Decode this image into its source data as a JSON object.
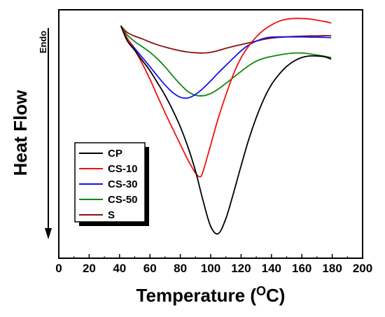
{
  "chart_data": {
    "type": "line",
    "xlabel": "Temperature (",
    "xlabel_sup": "O",
    "xlabel_end": "C)",
    "ylabel": "Heat Flow",
    "annotation": "Endo",
    "xlim": [
      0,
      200
    ],
    "ylim": [
      0,
      1
    ],
    "xticks": [
      "0",
      "20",
      "40",
      "60",
      "80",
      "100",
      "120",
      "140",
      "160",
      "180",
      "200"
    ],
    "y_ticks_shown": false,
    "grid": false,
    "legend_position": "bottom-left",
    "series": [
      {
        "name": "CP",
        "color": "#000000",
        "x": [
          41,
          45,
          50,
          55,
          60,
          65,
          70,
          75,
          80,
          85,
          90,
          95,
          100,
          105,
          110,
          115,
          120,
          125,
          130,
          135,
          140,
          145,
          150,
          155,
          160,
          165,
          170,
          175,
          179
        ],
        "y": [
          0.934,
          0.876,
          0.837,
          0.796,
          0.755,
          0.706,
          0.655,
          0.596,
          0.529,
          0.448,
          0.351,
          0.231,
          0.128,
          0.099,
          0.16,
          0.262,
          0.372,
          0.477,
          0.566,
          0.641,
          0.699,
          0.74,
          0.772,
          0.794,
          0.808,
          0.814,
          0.814,
          0.811,
          0.802
        ]
      },
      {
        "name": "CS-10",
        "color": "#ee1111",
        "x": [
          41,
          45,
          50,
          55,
          60,
          65,
          70,
          75,
          80,
          85,
          90,
          93,
          95,
          100,
          105,
          110,
          115,
          120,
          125,
          130,
          135,
          140,
          145,
          150,
          155,
          160,
          165,
          170,
          175,
          179
        ],
        "y": [
          0.934,
          0.886,
          0.838,
          0.783,
          0.721,
          0.652,
          0.585,
          0.521,
          0.458,
          0.396,
          0.343,
          0.328,
          0.35,
          0.456,
          0.564,
          0.657,
          0.741,
          0.807,
          0.854,
          0.891,
          0.919,
          0.939,
          0.954,
          0.962,
          0.965,
          0.965,
          0.963,
          0.958,
          0.953,
          0.947
        ]
      },
      {
        "name": "CS-30",
        "color": "#1111ee",
        "x": [
          41,
          45,
          50,
          55,
          60,
          65,
          70,
          75,
          80,
          85,
          90,
          95,
          100,
          105,
          110,
          115,
          120,
          125,
          130,
          135,
          140,
          145,
          150,
          155,
          160,
          165,
          170,
          175,
          179
        ],
        "y": [
          0.934,
          0.886,
          0.845,
          0.808,
          0.771,
          0.733,
          0.697,
          0.667,
          0.648,
          0.645,
          0.659,
          0.684,
          0.714,
          0.746,
          0.776,
          0.806,
          0.835,
          0.858,
          0.874,
          0.885,
          0.89,
          0.891,
          0.891,
          0.891,
          0.891,
          0.89,
          0.89,
          0.889,
          0.888
        ]
      },
      {
        "name": "CS-50",
        "color": "#118811",
        "x": [
          41,
          45,
          50,
          55,
          60,
          65,
          70,
          75,
          80,
          85,
          90,
          95,
          100,
          105,
          110,
          115,
          120,
          125,
          130,
          135,
          140,
          145,
          150,
          155,
          160,
          165,
          170,
          175,
          179
        ],
        "y": [
          0.934,
          0.899,
          0.872,
          0.851,
          0.829,
          0.802,
          0.77,
          0.734,
          0.7,
          0.671,
          0.656,
          0.654,
          0.663,
          0.681,
          0.704,
          0.728,
          0.752,
          0.775,
          0.793,
          0.805,
          0.812,
          0.818,
          0.823,
          0.826,
          0.826,
          0.823,
          0.818,
          0.813,
          0.808
        ]
      },
      {
        "name": "S",
        "color": "#8b1111",
        "x": [
          41,
          45,
          50,
          55,
          60,
          65,
          70,
          75,
          80,
          85,
          90,
          95,
          100,
          105,
          110,
          115,
          120,
          125,
          130,
          135,
          140,
          145,
          150,
          155,
          160,
          165,
          170,
          175,
          179
        ],
        "y": [
          0.934,
          0.909,
          0.894,
          0.883,
          0.87,
          0.859,
          0.85,
          0.842,
          0.835,
          0.83,
          0.827,
          0.826,
          0.829,
          0.836,
          0.845,
          0.853,
          0.86,
          0.867,
          0.874,
          0.881,
          0.886,
          0.889,
          0.891,
          0.893,
          0.894,
          0.895,
          0.895,
          0.896,
          0.896
        ]
      }
    ]
  }
}
